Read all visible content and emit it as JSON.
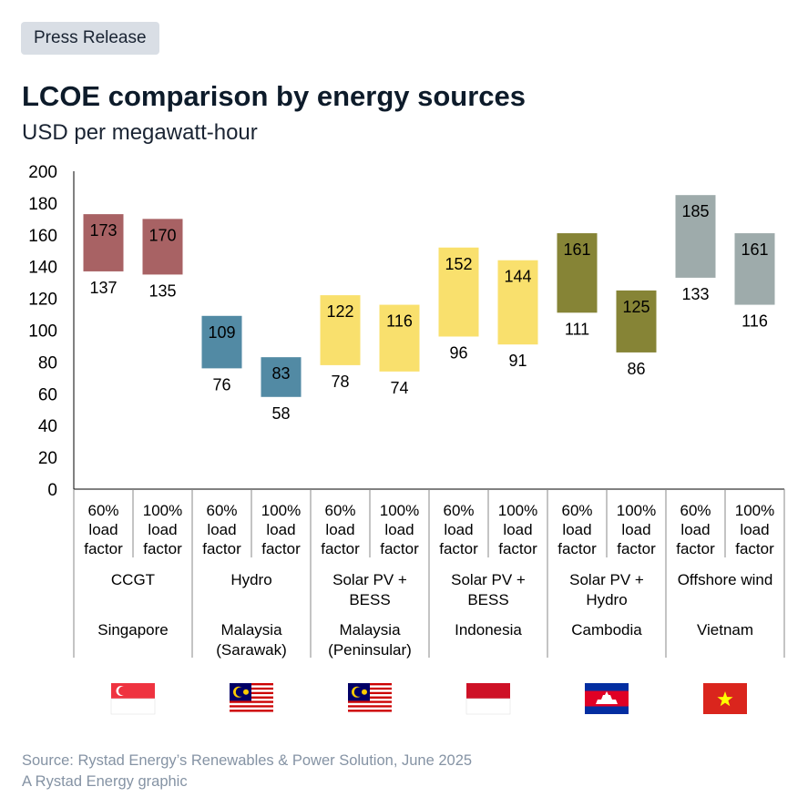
{
  "badge": "Press Release",
  "source_line": "Source: Rystad Energy’s Renewables & Power Solution, June 2025",
  "credit_line": "A Rystad Energy graphic",
  "chart_data": {
    "type": "floating-bar",
    "title": "LCOE comparison by energy sources",
    "subtitle": "USD per megawatt-hour",
    "ylim": [
      0,
      200
    ],
    "yticks": [
      0,
      20,
      40,
      60,
      80,
      100,
      120,
      140,
      160,
      180,
      200
    ],
    "groups": [
      {
        "technology": "CCGT",
        "country": "Singapore",
        "color": "#a86264",
        "flag": "singapore-flag"
      },
      {
        "technology": "Hydro",
        "country": "Malaysia (Sarawak)",
        "color": "#528aa4",
        "flag": "malaysia-flag"
      },
      {
        "technology": "Solar PV + BESS",
        "country": "Malaysia (Peninsular)",
        "color": "#f9e06d",
        "flag": "malaysia-flag"
      },
      {
        "technology": "Solar PV + BESS",
        "country": "Indonesia",
        "color": "#f9e06d",
        "flag": "indonesia-flag"
      },
      {
        "technology": "Solar PV + Hydro",
        "country": "Cambodia",
        "color": "#868436",
        "flag": "cambodia-flag"
      },
      {
        "technology": "Offshore wind",
        "country": "Vietnam",
        "color": "#9eabab",
        "flag": "vietnam-flag"
      }
    ],
    "bars": [
      {
        "group": 0,
        "category": "60% load factor",
        "low": 137,
        "high": 173
      },
      {
        "group": 0,
        "category": "100% load factor",
        "low": 135,
        "high": 170
      },
      {
        "group": 1,
        "category": "60% load factor",
        "low": 76,
        "high": 109
      },
      {
        "group": 1,
        "category": "100% load factor",
        "low": 58,
        "high": 83
      },
      {
        "group": 2,
        "category": "60% load factor",
        "low": 78,
        "high": 122
      },
      {
        "group": 2,
        "category": "100% load factor",
        "low": 74,
        "high": 116
      },
      {
        "group": 3,
        "category": "60% load factor",
        "low": 96,
        "high": 152
      },
      {
        "group": 3,
        "category": "100% load factor",
        "low": 91,
        "high": 144
      },
      {
        "group": 4,
        "category": "60% load factor",
        "low": 111,
        "high": 161
      },
      {
        "group": 4,
        "category": "100% load factor",
        "low": 86,
        "high": 125
      },
      {
        "group": 5,
        "category": "60% load factor",
        "low": 133,
        "high": 185
      },
      {
        "group": 5,
        "category": "100% load factor",
        "low": 116,
        "high": 161
      }
    ]
  }
}
